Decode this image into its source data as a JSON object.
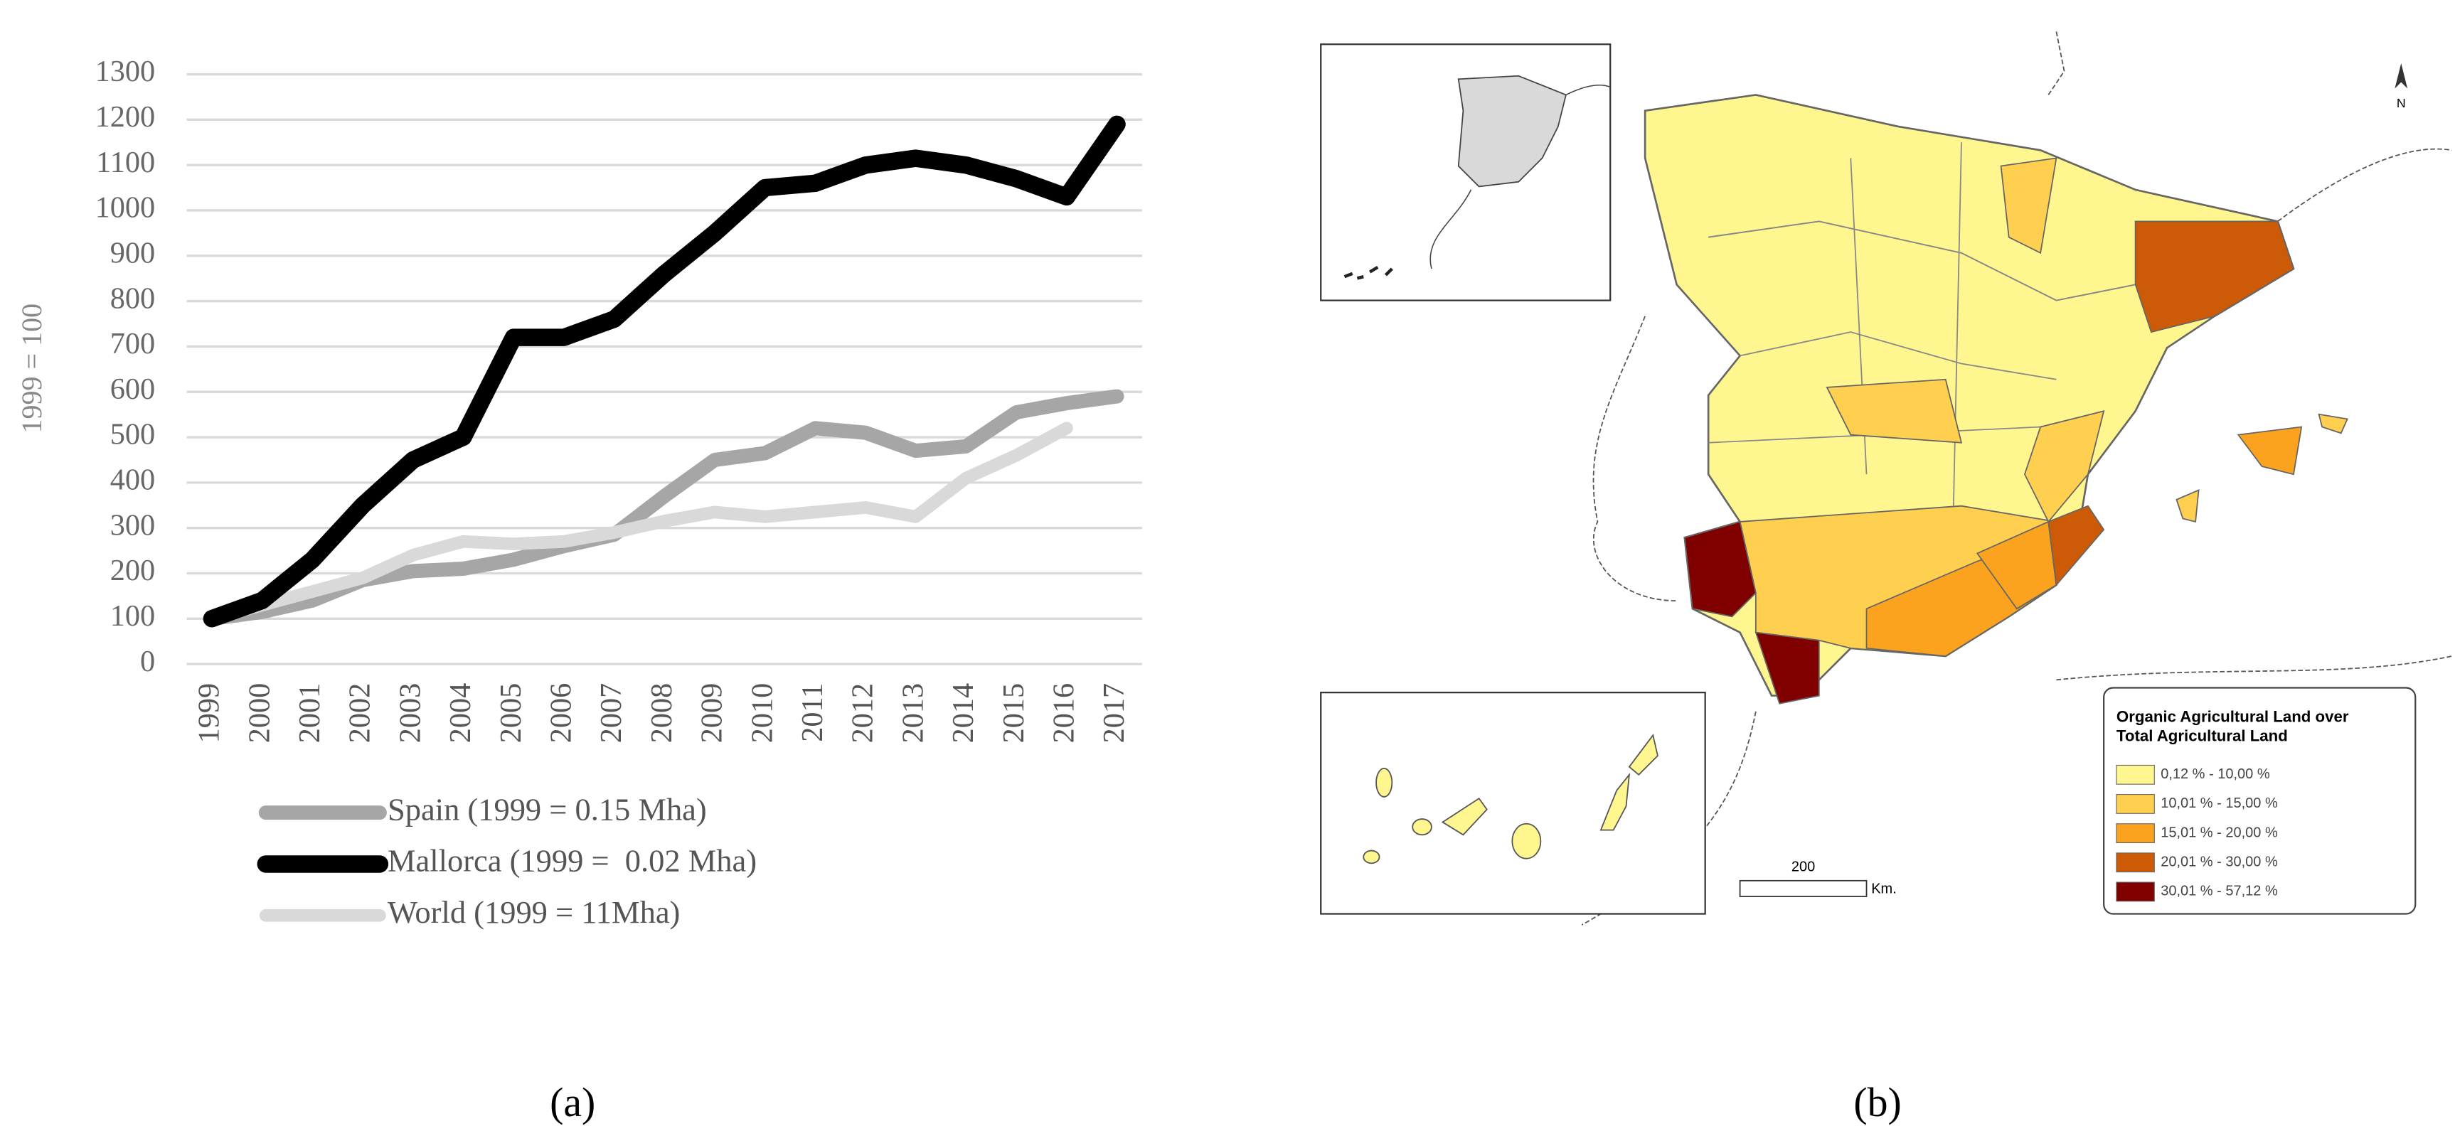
{
  "chart_data": {
    "type": "line",
    "y_label": "1999 = 100",
    "categories": [
      "1999",
      "2000",
      "2001",
      "2002",
      "2003",
      "2004",
      "2005",
      "2006",
      "2007",
      "2008",
      "2009",
      "2010",
      "2011",
      "2012",
      "2013",
      "2014",
      "2015",
      "2016",
      "2017"
    ],
    "series": [
      {
        "name": "Spain (1999 = 0.15 Mha)",
        "color": "#a6a6a6",
        "values": [
          100,
          115,
          140,
          185,
          205,
          210,
          230,
          260,
          285,
          370,
          450,
          465,
          520,
          510,
          470,
          480,
          555,
          575,
          590
        ]
      },
      {
        "name": "Mallorca (1999 =  0.02 Mha)",
        "color": "#000000",
        "values": [
          100,
          140,
          230,
          350,
          450,
          500,
          720,
          720,
          760,
          860,
          950,
          1050,
          1060,
          1100,
          1115,
          1100,
          1070,
          1030,
          1190
        ]
      },
      {
        "name": "World (1999 = 11Mha)",
        "color": "#d9d9d9",
        "values": [
          100,
          130,
          160,
          190,
          240,
          270,
          265,
          270,
          290,
          315,
          335,
          325,
          335,
          345,
          325,
          410,
          460,
          520,
          null
        ]
      }
    ],
    "ylim": [
      0,
      1300
    ],
    "yticks": [
      0,
      100,
      200,
      300,
      400,
      500,
      600,
      700,
      800,
      900,
      1000,
      1100,
      1200,
      1300
    ],
    "grid": true
  },
  "map": {
    "north": "N",
    "legend_title": [
      "Organic Agricultural Land over",
      "Total Agricultural Land"
    ],
    "legend_items": [
      {
        "label": "0,12 % - 10,00 %",
        "color": "#fff68f"
      },
      {
        "label": "10,01 % - 15,00 %",
        "color": "#ffd04f"
      },
      {
        "label": "15,01 % - 20,00 %",
        "color": "#fba21e"
      },
      {
        "label": "20,01 % - 30,00 %",
        "color": "#cc5a06"
      },
      {
        "label": "30,01 % - 57,12 %",
        "color": "#800000"
      }
    ],
    "scale_value": "200",
    "scale_unit": "Km."
  },
  "captions": [
    "(a)",
    "(b)"
  ]
}
